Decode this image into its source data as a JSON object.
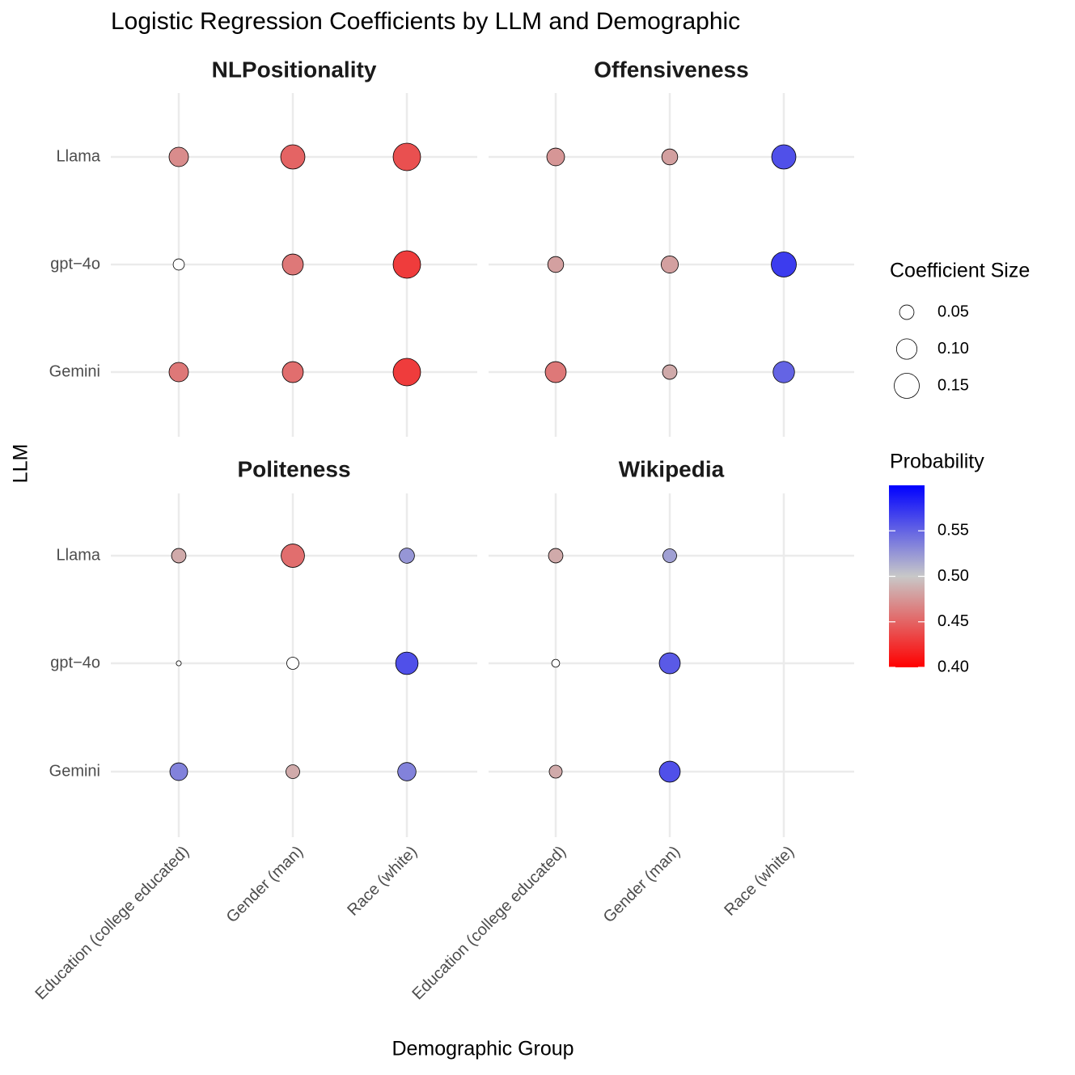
{
  "chart_data": {
    "type": "bubble",
    "title": "Logistic Regression Coefficients by LLM and Demographic",
    "x_label": "Demographic Group",
    "y_label": "LLM",
    "x_categories": [
      "Education (college educated)",
      "Gender (man)",
      "Race (white)"
    ],
    "y_categories": [
      "Llama",
      "gpt−4o",
      "Gemini"
    ],
    "panels": [
      {
        "title": "NLPositionality",
        "size": [
          [
            0.09,
            0.14,
            0.18
          ],
          [
            0.03,
            0.105,
            0.18
          ],
          [
            0.09,
            0.105,
            0.18
          ]
        ],
        "probability": [
          [
            0.47,
            0.45,
            0.44
          ],
          [
            null,
            0.46,
            0.43
          ],
          [
            0.46,
            0.455,
            0.43
          ]
        ]
      },
      {
        "title": "Offensiveness",
        "size": [
          [
            0.075,
            0.06,
            0.14
          ],
          [
            0.06,
            0.07,
            0.15
          ],
          [
            0.105,
            0.05,
            0.11
          ]
        ],
        "probability": [
          [
            0.475,
            0.48,
            0.56
          ],
          [
            0.48,
            0.48,
            0.57
          ],
          [
            0.46,
            0.485,
            0.55
          ]
        ]
      },
      {
        "title": "Politeness",
        "size": [
          [
            0.05,
            0.13,
            0.055
          ],
          [
            0.006,
            0.035,
            0.12
          ],
          [
            0.075,
            0.045,
            0.08
          ]
        ],
        "probability": [
          [
            0.485,
            0.455,
            0.525
          ],
          [
            null,
            null,
            0.56
          ],
          [
            0.535,
            0.485,
            0.535
          ]
        ]
      },
      {
        "title": "Wikipedia",
        "size": [
          [
            0.05,
            0.045,
            null
          ],
          [
            0.015,
            0.105,
            null
          ],
          [
            0.04,
            0.105,
            null
          ]
        ],
        "probability": [
          [
            0.485,
            0.52,
            null
          ],
          [
            null,
            0.555,
            null
          ],
          [
            0.485,
            0.56,
            null
          ]
        ]
      }
    ],
    "size_legend": {
      "title": "Coefficient Size",
      "ticks": [
        0.05,
        {
          "value": 0.1,
          "label": "0.10"
        },
        0.15
      ]
    },
    "color_legend": {
      "title": "Probability",
      "lim": [
        0.4,
        0.6
      ],
      "ticks": [
        {
          "value": 0.4,
          "label": "0.40"
        },
        0.45,
        {
          "value": 0.5,
          "label": "0.50"
        },
        0.55
      ],
      "low": "#ff0000",
      "mid": "#c8c8c8",
      "high": "#0000ff",
      "midpoint": 0.5,
      "na_color": "#ffffff"
    },
    "grid": true
  }
}
